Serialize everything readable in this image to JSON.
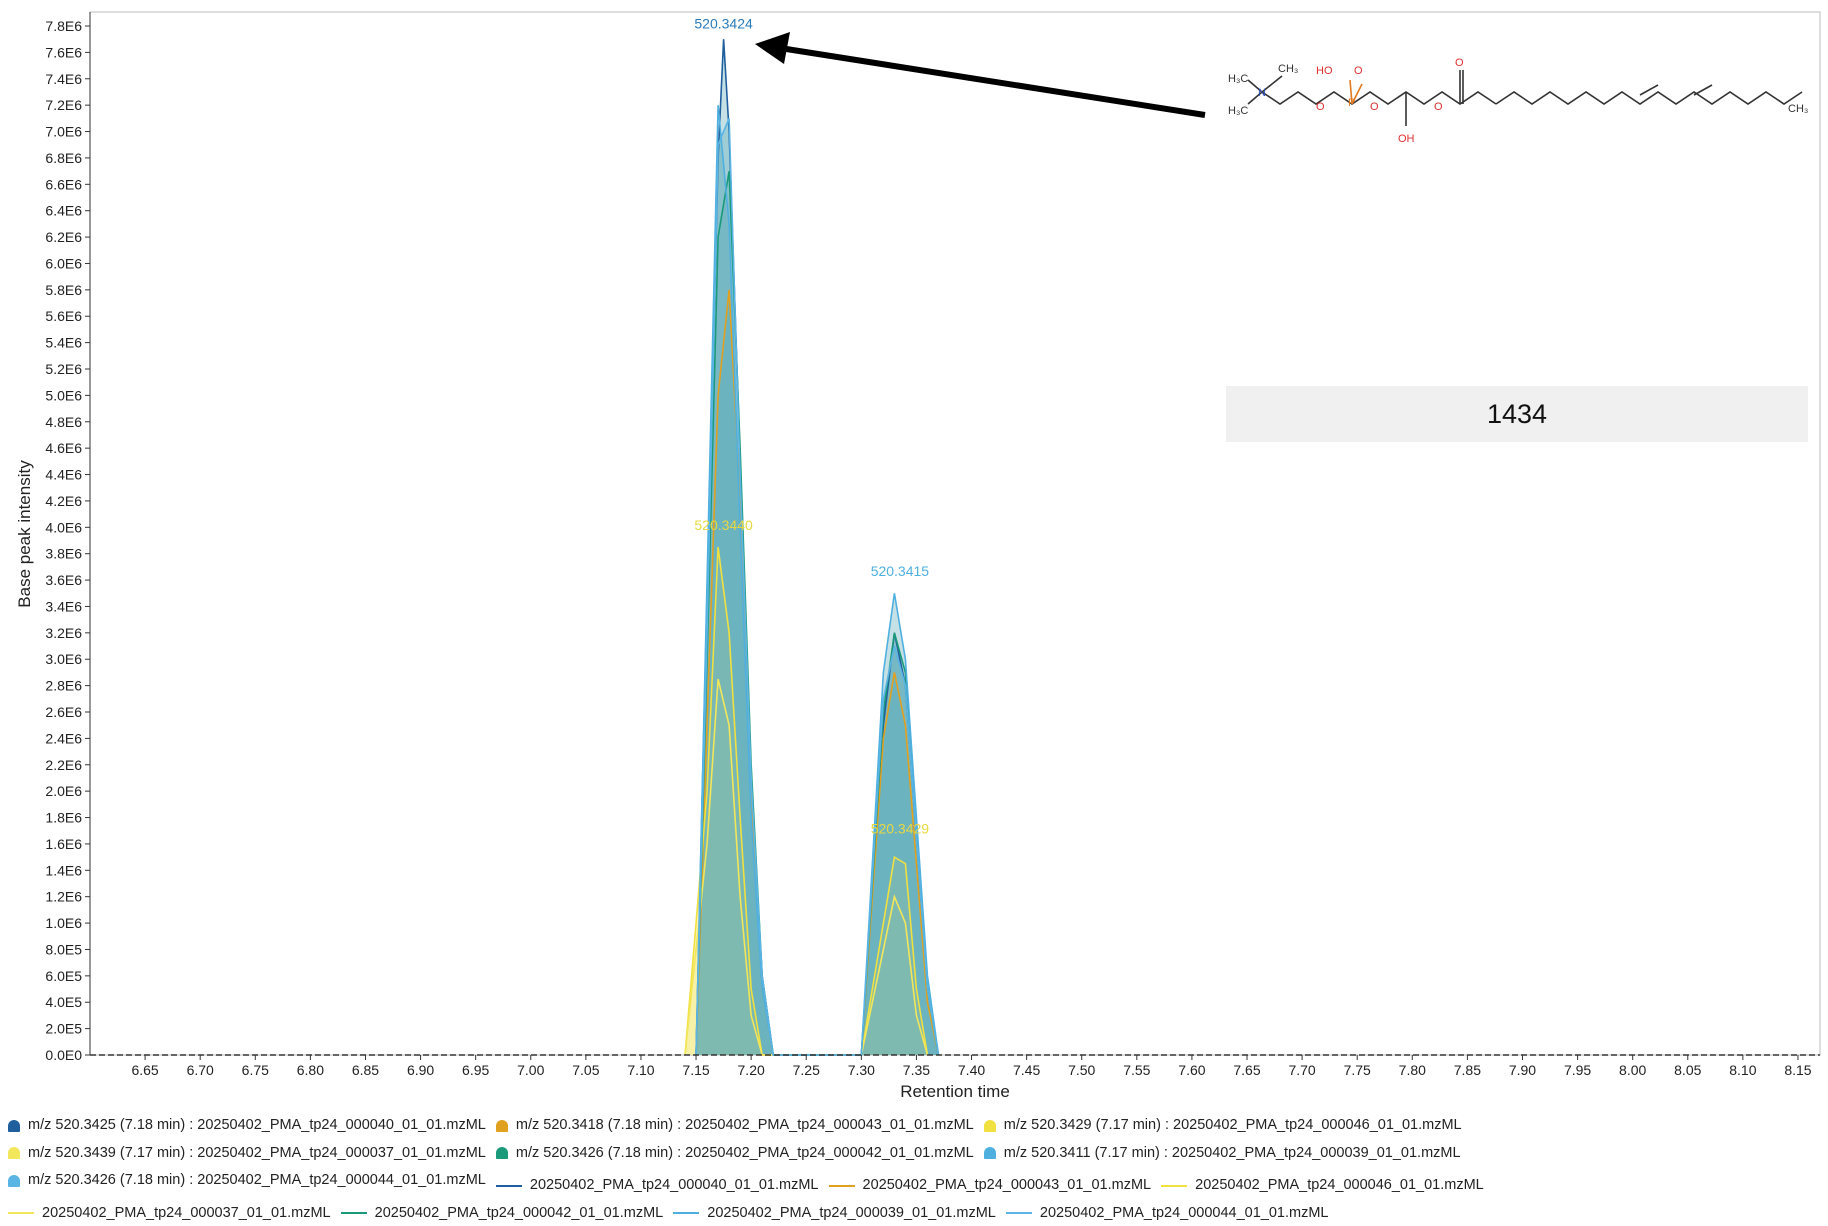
{
  "chart_data": {
    "type": "line",
    "xlabel": "Retention time",
    "ylabel": "Base peak intensity",
    "xlim": [
      6.6,
      8.17
    ],
    "ylim": [
      0,
      7.8
    ],
    "x_ticks": [
      "6.65",
      "6.70",
      "6.75",
      "6.80",
      "6.85",
      "6.90",
      "6.95",
      "7.00",
      "7.05",
      "7.10",
      "7.15",
      "7.20",
      "7.25",
      "7.30",
      "7.35",
      "7.40",
      "7.45",
      "7.50",
      "7.55",
      "7.60",
      "7.65",
      "7.70",
      "7.75",
      "7.80",
      "7.85",
      "7.90",
      "7.95",
      "8.00",
      "8.05",
      "8.10",
      "8.15"
    ],
    "y_ticks": [
      "0.0E0",
      "2.0E5",
      "4.0E5",
      "6.0E5",
      "8.0E5",
      "1.0E6",
      "1.2E6",
      "1.4E6",
      "1.6E6",
      "1.8E6",
      "2.0E6",
      "2.2E6",
      "2.4E6",
      "2.6E6",
      "2.8E6",
      "3.0E6",
      "3.2E6",
      "3.4E6",
      "3.6E6",
      "3.8E6",
      "4.0E6",
      "4.2E6",
      "4.4E6",
      "4.6E6",
      "4.8E6",
      "5.0E6",
      "5.2E6",
      "5.4E6",
      "5.6E6",
      "5.8E6",
      "6.0E6",
      "6.2E6",
      "6.4E6",
      "6.6E6",
      "6.8E6",
      "7.0E6",
      "7.2E6",
      "7.4E6",
      "7.6E6",
      "7.8E6"
    ],
    "series": [
      {
        "name": "m/z 520.3425 (7.18 min) : 20250402_PMA_tp24_000040_01_01.mzML",
        "color": "#1f5f9e",
        "marker": true,
        "x": [
          7.15,
          7.16,
          7.17,
          7.175,
          7.18,
          7.19,
          7.2,
          7.21,
          7.22,
          7.3,
          7.32,
          7.33,
          7.34,
          7.36,
          7.37
        ],
        "y": [
          0.0,
          3.5,
          6.8,
          7.7,
          7.0,
          4.5,
          2.0,
          0.6,
          0.0,
          0.0,
          2.5,
          3.2,
          2.8,
          0.5,
          0.0
        ]
      },
      {
        "name": "m/z 520.3418 (7.18 min) : 20250402_PMA_tp24_000043_01_01.mzML",
        "color": "#e0a020",
        "marker": true,
        "x": [
          7.15,
          7.16,
          7.17,
          7.18,
          7.19,
          7.2,
          7.21,
          7.22,
          7.3,
          7.32,
          7.33,
          7.34,
          7.36,
          7.37
        ],
        "y": [
          0.0,
          2.5,
          5.0,
          5.8,
          4.2,
          2.0,
          0.5,
          0.0,
          0.0,
          2.4,
          2.9,
          2.5,
          0.4,
          0.0
        ]
      },
      {
        "name": "m/z 520.3429 (7.17 min) : 20250402_PMA_tp24_000046_01_01.mzML",
        "color": "#f0e040",
        "marker": true,
        "x": [
          7.14,
          7.16,
          7.17,
          7.18,
          7.19,
          7.2,
          7.21,
          7.3,
          7.32,
          7.33,
          7.34,
          7.35,
          7.36
        ],
        "y": [
          0.0,
          2.0,
          3.85,
          3.2,
          1.8,
          0.5,
          0.0,
          0.0,
          1.0,
          1.5,
          1.45,
          0.5,
          0.0
        ]
      },
      {
        "name": "m/z 520.3439 (7.17 min) : 20250402_PMA_tp24_000037_01_01.mzML",
        "color": "#f2e65a",
        "marker": true,
        "x": [
          7.14,
          7.16,
          7.17,
          7.18,
          7.19,
          7.2,
          7.21,
          7.3,
          7.32,
          7.33,
          7.34,
          7.35,
          7.36
        ],
        "y": [
          0.0,
          1.6,
          2.85,
          2.5,
          1.2,
          0.3,
          0.0,
          0.0,
          0.8,
          1.2,
          1.0,
          0.3,
          0.0
        ]
      },
      {
        "name": "m/z 520.3426 (7.18 min) : 20250402_PMA_tp24_000042_01_01.mzML",
        "color": "#1a9a7a",
        "marker": true,
        "x": [
          7.15,
          7.16,
          7.17,
          7.18,
          7.19,
          7.2,
          7.21,
          7.22,
          7.3,
          7.32,
          7.33,
          7.34,
          7.36,
          7.37
        ],
        "y": [
          0.0,
          3.0,
          6.2,
          6.7,
          4.6,
          2.2,
          0.6,
          0.0,
          0.0,
          2.6,
          3.2,
          2.9,
          0.5,
          0.0
        ]
      },
      {
        "name": "m/z 520.3411 (7.17 min) : 20250402_PMA_tp24_000039_01_01.mzML",
        "color": "#4fb0e0",
        "marker": true,
        "x": [
          7.15,
          7.16,
          7.17,
          7.18,
          7.19,
          7.2,
          7.21,
          7.22,
          7.3,
          7.32,
          7.33,
          7.34,
          7.36,
          7.37
        ],
        "y": [
          0.0,
          3.6,
          7.2,
          6.3,
          4.0,
          1.8,
          0.5,
          0.0,
          0.0,
          2.9,
          3.5,
          3.0,
          0.6,
          0.0
        ]
      },
      {
        "name": "m/z 520.3426 (7.18 min) : 20250402_PMA_tp24_000044_01_01.mzML",
        "color": "#5ab4e4",
        "marker": true,
        "x": [
          7.15,
          7.16,
          7.17,
          7.18,
          7.19,
          7.2,
          7.21,
          7.22,
          7.3,
          7.32,
          7.33,
          7.34,
          7.36,
          7.37
        ],
        "y": [
          0.0,
          3.2,
          6.9,
          7.1,
          4.4,
          2.1,
          0.6,
          0.0,
          0.0,
          2.7,
          3.1,
          2.8,
          0.5,
          0.0
        ]
      },
      {
        "name": "20250402_PMA_tp24_000040_01_01.mzML",
        "color": "#1f5f9e",
        "marker": false
      },
      {
        "name": "20250402_PMA_tp24_000043_01_01.mzML",
        "color": "#e0a020",
        "marker": false
      },
      {
        "name": "20250402_PMA_tp24_000046_01_01.mzML",
        "color": "#f0e040",
        "marker": false
      },
      {
        "name": "20250402_PMA_tp24_000037_01_01.mzML",
        "color": "#f2e65a",
        "marker": false
      },
      {
        "name": "20250402_PMA_tp24_000042_01_01.mzML",
        "color": "#1a9a7a",
        "marker": false
      },
      {
        "name": "20250402_PMA_tp24_000039_01_01.mzML",
        "color": "#4fb0e0",
        "marker": false
      },
      {
        "name": "20250402_PMA_tp24_000044_01_01.mzML",
        "color": "#5ab4e4",
        "marker": false
      }
    ],
    "peak_labels": [
      {
        "text": "520.3424",
        "x": 7.175,
        "y": 7.75,
        "color": "#2a7ab8"
      },
      {
        "text": "520.3440",
        "x": 7.175,
        "y": 3.95,
        "color": "#e8d840"
      },
      {
        "text": "520.3415",
        "x": 7.335,
        "y": 3.6,
        "color": "#4fb0e0"
      },
      {
        "text": "520.3429",
        "x": 7.335,
        "y": 1.65,
        "color": "#e8d840"
      }
    ],
    "fill_color": "#5aaab8",
    "grid": false,
    "legend_position": "bottom"
  },
  "annotation": {
    "id_text": "1434",
    "structure_icon": "lipid-structure-icon",
    "arrow_icon": "arrow-left-icon"
  }
}
